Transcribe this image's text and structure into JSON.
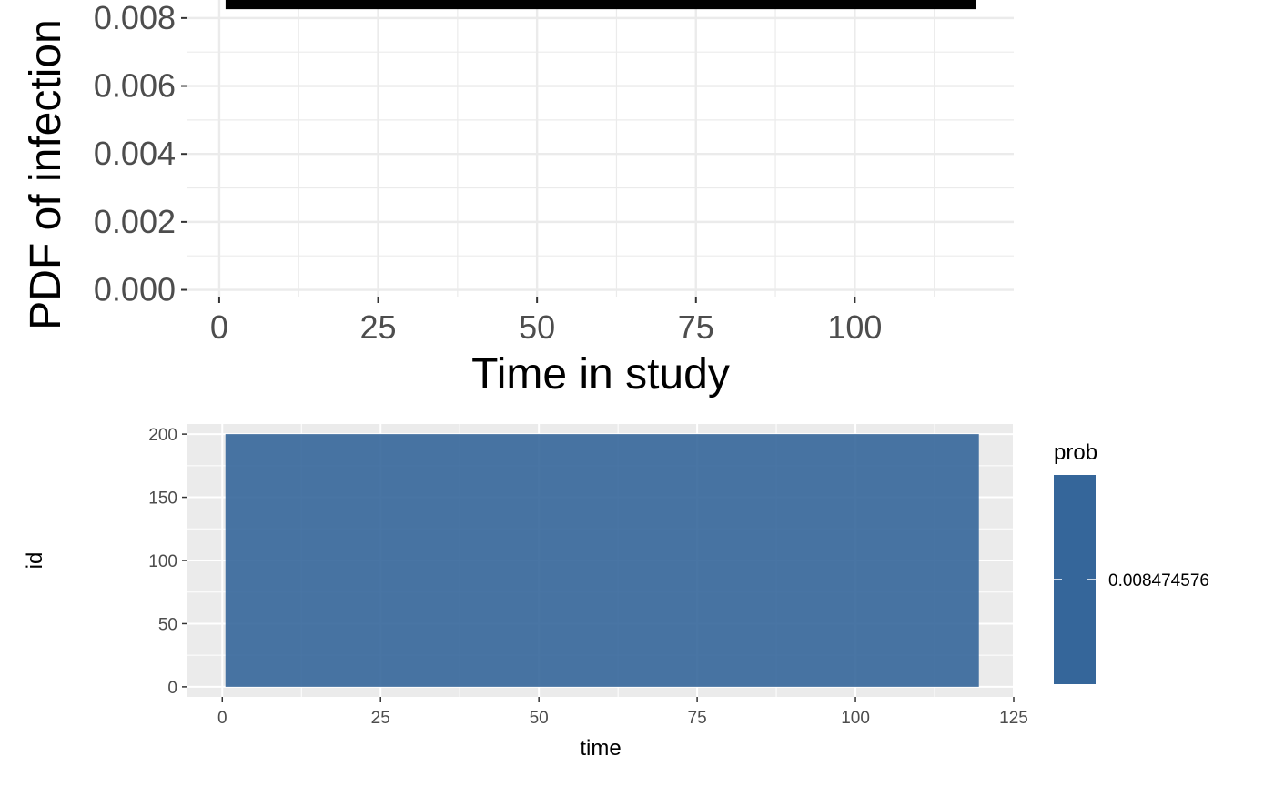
{
  "chart_data": [
    {
      "type": "line",
      "xlabel": "Time in study",
      "ylabel": "PDF of infection",
      "xlim": [
        -5,
        125
      ],
      "ylim": [
        -0.0002,
        0.0088
      ],
      "x_ticks": [
        0,
        25,
        50,
        75,
        100
      ],
      "x_tick_labels": [
        "0",
        "25",
        "50",
        "75",
        "100"
      ],
      "y_ticks": [
        0,
        0.002,
        0.004,
        0.006,
        0.008
      ],
      "y_tick_labels": [
        "0.000",
        "0.002",
        "0.004",
        "0.006",
        "0.008"
      ],
      "grid": true,
      "series": [
        {
          "x": [
            1,
            119
          ],
          "y": [
            0.008474576,
            0.008474576
          ]
        }
      ],
      "colors": {
        "line": "#000000",
        "grid": "#ebebeb"
      }
    },
    {
      "type": "heatmap",
      "xlabel": "time",
      "ylabel": "id",
      "xlim": [
        -5.5,
        125
      ],
      "ylim": [
        -8,
        208
      ],
      "x_ticks": [
        0,
        25,
        50,
        75,
        100,
        125
      ],
      "x_tick_labels": [
        "0",
        "25",
        "50",
        "75",
        "100",
        "125"
      ],
      "y_ticks": [
        0,
        50,
        100,
        150,
        200
      ],
      "y_tick_labels": [
        "0",
        "50",
        "100",
        "150",
        "200"
      ],
      "grid": true,
      "tile": {
        "x": [
          0.5,
          119.5
        ],
        "y": [
          0,
          200
        ],
        "value": 0.008474576
      },
      "legend": {
        "title": "prob",
        "placement": "right",
        "label": "0.008474576",
        "value": 0.008474576
      },
      "colors": {
        "fill": "#35669a",
        "panel": "#ebebeb",
        "grid": "#ffffff"
      }
    }
  ]
}
